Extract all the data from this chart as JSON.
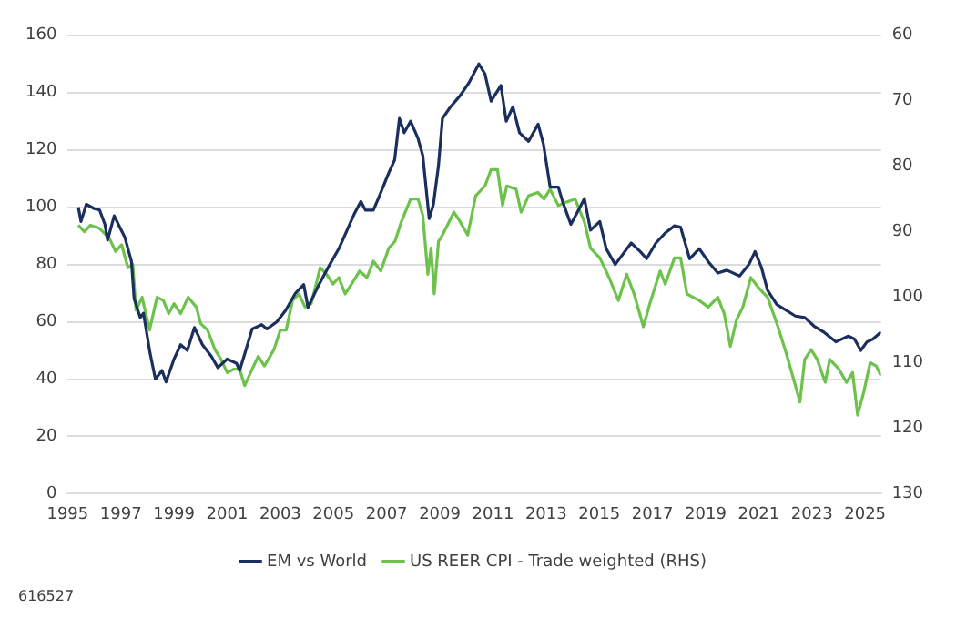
{
  "chart_data": {
    "type": "line",
    "xlim": [
      1995,
      2025.6
    ],
    "xticks": [
      1995,
      1997,
      1999,
      2001,
      2003,
      2005,
      2007,
      2009,
      2011,
      2013,
      2015,
      2017,
      2019,
      2021,
      2023,
      2025
    ],
    "ylim": [
      0,
      160
    ],
    "yticks": [
      0,
      20,
      40,
      60,
      80,
      100,
      120,
      140,
      160
    ],
    "y2lim": [
      130,
      60
    ],
    "y2ticks": [
      60,
      70,
      80,
      90,
      100,
      110,
      120,
      130
    ],
    "grid": "y",
    "legend": "bottom",
    "annotations": [
      "616527"
    ],
    "series": [
      {
        "name": "EM vs World",
        "color": "#1b2f5e",
        "x": [
          1995.4,
          1995.5,
          1995.7,
          1996.0,
          1996.2,
          1996.4,
          1996.5,
          1996.75,
          1996.96,
          1997.15,
          1997.4,
          1997.5,
          1997.73,
          1997.85,
          1998.1,
          1998.3,
          1998.55,
          1998.7,
          1999.0,
          1999.25,
          1999.5,
          1999.77,
          2000.07,
          2000.4,
          2000.65,
          2001.0,
          2001.35,
          2001.47,
          2001.7,
          2001.94,
          2002.3,
          2002.5,
          2002.87,
          2003.2,
          2003.57,
          2003.88,
          2004.04,
          2004.4,
          2004.86,
          2005.2,
          2005.56,
          2005.8,
          2006.03,
          2006.2,
          2006.5,
          2006.73,
          2007.08,
          2007.3,
          2007.48,
          2007.66,
          2007.9,
          2008.18,
          2008.36,
          2008.6,
          2008.76,
          2008.95,
          2009.1,
          2009.4,
          2009.77,
          2010.1,
          2010.47,
          2010.7,
          2010.93,
          2011.3,
          2011.5,
          2011.75,
          2012.0,
          2012.34,
          2012.7,
          2012.9,
          2013.15,
          2013.46,
          2013.62,
          2013.93,
          2014.16,
          2014.44,
          2014.67,
          2015.02,
          2015.26,
          2015.6,
          2015.84,
          2016.2,
          2016.54,
          2016.78,
          2017.13,
          2017.48,
          2017.83,
          2018.06,
          2018.4,
          2018.76,
          2019.1,
          2019.46,
          2019.8,
          2020.28,
          2020.63,
          2020.86,
          2021.1,
          2021.33,
          2021.68,
          2022.03,
          2022.38,
          2022.73,
          2023.08,
          2023.43,
          2023.9,
          2024.37,
          2024.6,
          2024.84,
          2025.07,
          2025.3,
          2025.6
        ],
        "values": [
          100,
          95,
          101,
          99.5,
          99,
          94,
          88.5,
          97,
          93,
          89.5,
          81,
          68,
          61.5,
          63,
          49,
          40,
          43,
          39,
          47,
          52,
          50,
          58,
          52,
          48,
          44,
          47,
          45.5,
          43,
          50,
          57.5,
          59,
          57.5,
          60,
          64,
          70,
          73,
          65,
          72,
          80,
          85.5,
          93,
          98,
          102,
          99,
          99,
          104,
          112,
          116.5,
          131,
          126,
          130,
          124,
          118,
          96,
          101,
          114.5,
          131,
          135,
          139,
          143.5,
          150,
          146.5,
          137,
          142.5,
          130,
          135,
          126,
          123,
          129,
          122,
          107,
          107,
          102,
          94,
          98,
          103,
          92,
          95,
          85.5,
          80,
          83,
          87.5,
          84.5,
          82,
          87.5,
          91,
          93.5,
          93,
          82,
          85.5,
          81,
          77,
          78,
          76,
          80,
          84.5,
          79,
          71,
          66,
          64,
          62,
          61.5,
          58.5,
          56.5,
          53,
          55,
          54,
          50,
          53,
          54,
          56.5
        ]
      },
      {
        "name": "US REER CPI - Trade weighted (RHS)",
        "color": "#6cc24a",
        "axis": "y2",
        "x": [
          1995.4,
          1995.63,
          1995.86,
          1996.2,
          1996.57,
          1996.8,
          1997.03,
          1997.27,
          1997.45,
          1997.57,
          1997.8,
          1998.08,
          1998.36,
          1998.6,
          1998.8,
          1999.0,
          1999.25,
          1999.53,
          1999.84,
          2000.0,
          2000.26,
          2000.54,
          2000.77,
          2001.0,
          2001.24,
          2001.47,
          2001.66,
          2001.94,
          2002.17,
          2002.4,
          2002.76,
          2003.0,
          2003.22,
          2003.46,
          2003.7,
          2003.93,
          2004.16,
          2004.5,
          2004.74,
          2004.98,
          2005.2,
          2005.44,
          2005.68,
          2005.98,
          2006.26,
          2006.5,
          2006.78,
          2007.08,
          2007.31,
          2007.55,
          2007.9,
          2008.18,
          2008.36,
          2008.55,
          2008.67,
          2008.79,
          2008.95,
          2009.1,
          2009.35,
          2009.53,
          2009.77,
          2010.05,
          2010.35,
          2010.7,
          2010.93,
          2011.17,
          2011.36,
          2011.52,
          2011.87,
          2012.06,
          2012.34,
          2012.69,
          2012.92,
          2013.15,
          2013.46,
          2013.74,
          2014.09,
          2014.44,
          2014.67,
          2015.02,
          2015.37,
          2015.72,
          2016.03,
          2016.31,
          2016.66,
          2016.9,
          2017.29,
          2017.48,
          2017.83,
          2018.06,
          2018.3,
          2018.76,
          2019.1,
          2019.46,
          2019.7,
          2019.93,
          2020.16,
          2020.4,
          2020.7,
          2020.98,
          2021.33,
          2021.68,
          2022.03,
          2022.38,
          2022.55,
          2022.73,
          2022.97,
          2023.2,
          2023.5,
          2023.67,
          2024.02,
          2024.3,
          2024.53,
          2024.72,
          2024.95,
          2025.19,
          2025.42,
          2025.6
        ],
        "values": [
          89,
          90,
          89,
          89.5,
          91,
          93,
          92,
          95.5,
          95,
          102,
          100,
          105,
          100,
          100.5,
          102.5,
          101,
          102.5,
          100,
          101.5,
          104,
          105,
          108,
          109.5,
          111.5,
          111,
          111,
          113.5,
          111,
          109,
          110.5,
          108,
          105,
          105,
          100.5,
          99.5,
          101.5,
          101,
          95.5,
          96.5,
          98,
          97,
          99.5,
          98,
          96,
          97,
          94.5,
          96,
          92.5,
          91.5,
          88.5,
          85,
          85,
          87.5,
          96.5,
          92.5,
          99.5,
          91.5,
          90.5,
          88.5,
          87,
          88.5,
          90.5,
          84.5,
          83,
          80.5,
          80.5,
          86,
          83,
          83.5,
          87,
          84.5,
          84,
          85,
          83.5,
          86,
          85.5,
          85,
          88.5,
          92.5,
          94,
          97,
          100.5,
          96.5,
          99.5,
          104.5,
          101,
          96,
          98,
          94,
          94,
          99.5,
          100.5,
          101.5,
          100,
          102.5,
          107.5,
          103.5,
          101.5,
          97,
          98.5,
          100,
          104,
          108.5,
          113.5,
          116,
          109.5,
          108,
          109.5,
          113,
          109.5,
          111,
          113,
          111.5,
          118,
          114.5,
          110,
          110.5,
          112
        ]
      }
    ]
  }
}
